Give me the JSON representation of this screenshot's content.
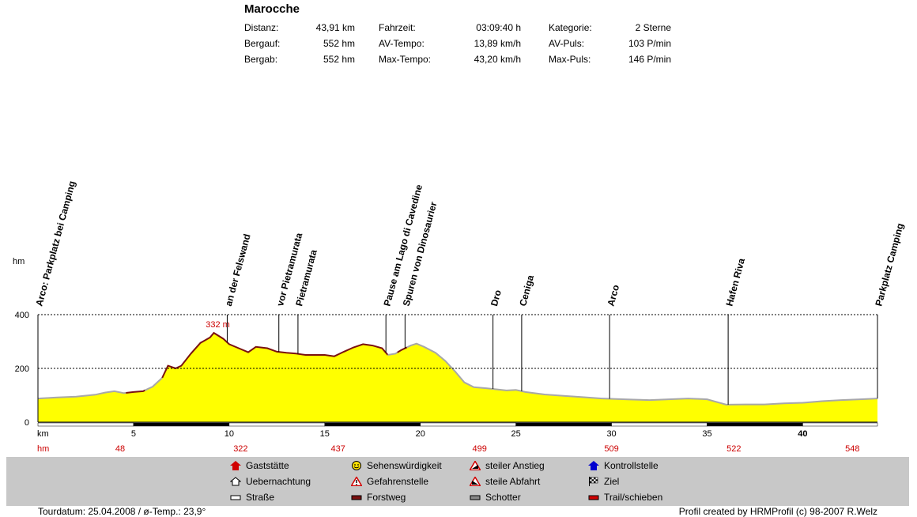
{
  "title": "Marocche",
  "stats": [
    {
      "label": "Distanz:",
      "value": "43,91 km"
    },
    {
      "label": "Bergauf:",
      "value": "552 hm"
    },
    {
      "label": "Bergab:",
      "value": "552 hm"
    },
    {
      "label": "Fahrzeit:",
      "value": "03:09:40 h"
    },
    {
      "label": "AV-Tempo:",
      "value": "13,89 km/h"
    },
    {
      "label": "Max-Tempo:",
      "value": "43,20 km/h"
    },
    {
      "label": "Kategorie:",
      "value": "2 Sterne"
    },
    {
      "label": "AV-Puls:",
      "value": "103 P/min"
    },
    {
      "label": "Max-Puls:",
      "value": "146 P/min"
    }
  ],
  "chart_data": {
    "type": "area",
    "ylabel": "hm",
    "xlabel": "km",
    "xlim": [
      0,
      43.91
    ],
    "ylim": [
      0,
      400
    ],
    "yticks": [
      0,
      200,
      400
    ],
    "xticks": [
      5,
      10,
      15,
      20,
      25,
      30,
      35,
      40
    ],
    "x_bold_tick": 40,
    "max_label": "332 m",
    "max_point": {
      "x": 9.2,
      "y": 332
    },
    "profile": [
      [
        0,
        88
      ],
      [
        1,
        92
      ],
      [
        2,
        95
      ],
      [
        3,
        102
      ],
      [
        3.5,
        110
      ],
      [
        4,
        115
      ],
      [
        4.5,
        108
      ],
      [
        5,
        112
      ],
      [
        5.5,
        115
      ],
      [
        6,
        132
      ],
      [
        6.5,
        165
      ],
      [
        6.8,
        210
      ],
      [
        7.2,
        200
      ],
      [
        7.5,
        210
      ],
      [
        8,
        255
      ],
      [
        8.5,
        295
      ],
      [
        9,
        315
      ],
      [
        9.2,
        332
      ],
      [
        9.7,
        310
      ],
      [
        10,
        290
      ],
      [
        10.5,
        275
      ],
      [
        11,
        260
      ],
      [
        11.4,
        280
      ],
      [
        12,
        275
      ],
      [
        12.5,
        262
      ],
      [
        13,
        258
      ],
      [
        13.5,
        255
      ],
      [
        14,
        250
      ],
      [
        15,
        250
      ],
      [
        15.5,
        245
      ],
      [
        16,
        262
      ],
      [
        16.5,
        278
      ],
      [
        17,
        290
      ],
      [
        17.5,
        285
      ],
      [
        18,
        275
      ],
      [
        18.3,
        250
      ],
      [
        18.7,
        255
      ],
      [
        19,
        268
      ],
      [
        19.5,
        285
      ],
      [
        19.8,
        292
      ],
      [
        20.2,
        280
      ],
      [
        20.8,
        258
      ],
      [
        21.3,
        228
      ],
      [
        21.8,
        190
      ],
      [
        22.3,
        148
      ],
      [
        22.8,
        130
      ],
      [
        23.5,
        126
      ],
      [
        24.5,
        118
      ],
      [
        25,
        120
      ],
      [
        25.5,
        112
      ],
      [
        26.5,
        103
      ],
      [
        27.5,
        98
      ],
      [
        28.5,
        93
      ],
      [
        29.5,
        88
      ],
      [
        31,
        84
      ],
      [
        32,
        82
      ],
      [
        33,
        85
      ],
      [
        34,
        88
      ],
      [
        35,
        85
      ],
      [
        36,
        65
      ],
      [
        37,
        66
      ],
      [
        38,
        66
      ],
      [
        39,
        70
      ],
      [
        40,
        72
      ],
      [
        41,
        78
      ],
      [
        42,
        82
      ],
      [
        43,
        85
      ],
      [
        43.91,
        88
      ]
    ],
    "terrain_segments": [
      {
        "from": 0,
        "to": 4.6,
        "kind": "road"
      },
      {
        "from": 4.6,
        "to": 5.6,
        "kind": "forest"
      },
      {
        "from": 5.6,
        "to": 6.5,
        "kind": "road"
      },
      {
        "from": 6.5,
        "to": 18.3,
        "kind": "forest"
      },
      {
        "from": 18.3,
        "to": 18.8,
        "kind": "road"
      },
      {
        "from": 18.8,
        "to": 19.3,
        "kind": "forest"
      },
      {
        "from": 19.3,
        "to": 43.91,
        "kind": "road"
      }
    ],
    "bottom_bar": [
      {
        "from": 0,
        "to": 5,
        "color": "#ffffff"
      },
      {
        "from": 5,
        "to": 10,
        "color": "#000000"
      },
      {
        "from": 10,
        "to": 15,
        "color": "#ffffff"
      },
      {
        "from": 15,
        "to": 20,
        "color": "#000000"
      },
      {
        "from": 20,
        "to": 25,
        "color": "#ffffff"
      },
      {
        "from": 25,
        "to": 30,
        "color": "#000000"
      },
      {
        "from": 30,
        "to": 35,
        "color": "#ffffff"
      },
      {
        "from": 35,
        "to": 40,
        "color": "#000000"
      },
      {
        "from": 40,
        "to": 43.91,
        "color": "#ffffff"
      }
    ],
    "waypoints": [
      {
        "x": 0.0,
        "label": "Arco: Parkplatz bei Camping"
      },
      {
        "x": 9.9,
        "label": "an der Felswand"
      },
      {
        "x": 12.6,
        "label": "vor Pietramurata"
      },
      {
        "x": 13.6,
        "label": "Pietramurata"
      },
      {
        "x": 18.2,
        "label": "Pause am Lago di Cavedine"
      },
      {
        "x": 19.2,
        "label": "Spuren von Dinosaurier"
      },
      {
        "x": 23.8,
        "label": "Dro"
      },
      {
        "x": 25.3,
        "label": "Ceniga"
      },
      {
        "x": 29.9,
        "label": "Arco"
      },
      {
        "x": 36.1,
        "label": "Hafen Riva"
      },
      {
        "x": 43.91,
        "label": "Parkplatz Camping"
      }
    ],
    "cumulative_hm": [
      {
        "x": 4.3,
        "value": "48"
      },
      {
        "x": 10.6,
        "value": "322"
      },
      {
        "x": 15.7,
        "value": "437"
      },
      {
        "x": 23.1,
        "value": "499"
      },
      {
        "x": 30.0,
        "value": "509"
      },
      {
        "x": 36.4,
        "value": "522"
      },
      {
        "x": 42.6,
        "value": "548"
      }
    ],
    "row_labels": {
      "km": "km",
      "hm": "hm"
    },
    "colors": {
      "fill": "#ffff00",
      "forest": "#7a1111",
      "road": "#a8a8a8",
      "grid": "#000000",
      "hm_text": "#cc0000"
    }
  },
  "legend": [
    {
      "icon": "house-red-icon",
      "label": "Gaststätte"
    },
    {
      "icon": "house-outline-icon",
      "label": "Uebernachtung"
    },
    {
      "icon": "white-bar-icon",
      "label": "Straße"
    },
    {
      "icon": "smiley-icon",
      "label": "Sehenswürdigkeit"
    },
    {
      "icon": "warning-triangle-icon",
      "label": "Gefahrenstelle"
    },
    {
      "icon": "dark-red-bar-icon",
      "label": "Forstweg"
    },
    {
      "icon": "steep-up-icon",
      "label": "steiler Anstieg"
    },
    {
      "icon": "steep-down-icon",
      "label": "steile Abfahrt"
    },
    {
      "icon": "gray-bar-icon",
      "label": "Schotter"
    },
    {
      "icon": "house-blue-icon",
      "label": "Kontrollstelle"
    },
    {
      "icon": "checkered-flag-icon",
      "label": "Ziel"
    },
    {
      "icon": "red-bar-icon",
      "label": "Trail/schieben"
    }
  ],
  "footer": {
    "left": "Tourdatum: 25.04.2008  /  ø-Temp.: 23,9°",
    "right": "Profil created by HRMProfil (c) 98-2007 R.Welz"
  }
}
